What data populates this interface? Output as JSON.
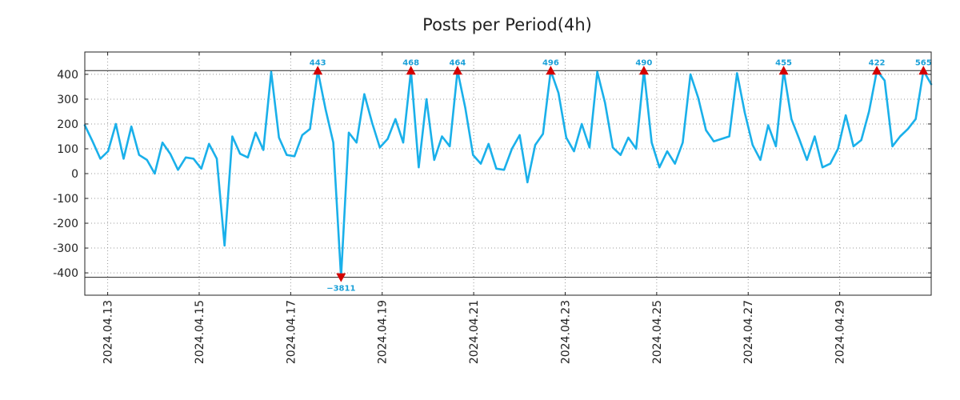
{
  "chart_data": {
    "type": "line",
    "title": "Posts per Period(4h)",
    "xlabel": "",
    "ylabel": "",
    "ylim": [
      -490,
      490
    ],
    "grid": true,
    "yticks": [
      400,
      300,
      200,
      100,
      0,
      -100,
      -200,
      -300,
      -400
    ],
    "ytick_labels": [
      "400",
      "300",
      "200",
      "100",
      "0",
      "-100",
      "-200",
      "-300",
      "-400"
    ],
    "x_start_date": "2024.04.12 12:00",
    "x_end_date": "2024.05.01 00:00",
    "xticks": [
      "2024.04.13",
      "2024.04.15",
      "2024.04.17",
      "2024.04.19",
      "2024.04.21",
      "2024.04.23",
      "2024.04.25",
      "2024.04.27",
      "2024.04.29"
    ],
    "clip_lines": [
      415,
      -418
    ],
    "series": [
      {
        "name": "Posts",
        "color": "#1ab0ea",
        "values": [
          195,
          130,
          60,
          90,
          200,
          60,
          190,
          75,
          55,
          0,
          125,
          80,
          15,
          65,
          60,
          20,
          120,
          60,
          -290,
          150,
          80,
          65,
          165,
          95,
          410,
          145,
          75,
          70,
          155,
          180,
          415,
          260,
          125,
          -418,
          165,
          125,
          320,
          205,
          105,
          140,
          220,
          125,
          415,
          25,
          300,
          55,
          150,
          110,
          415,
          265,
          75,
          40,
          120,
          20,
          15,
          100,
          155,
          -35,
          115,
          160,
          415,
          325,
          145,
          90,
          200,
          105,
          410,
          285,
          105,
          75,
          145,
          100,
          415,
          125,
          25,
          90,
          40,
          125,
          400,
          305,
          175,
          130,
          140,
          150,
          405,
          245,
          115,
          55,
          195,
          110,
          415,
          220,
          140,
          55,
          150,
          25,
          40,
          100,
          235,
          110,
          135,
          250,
          415,
          375,
          110,
          150,
          180,
          220,
          415,
          360
        ]
      }
    ],
    "markers": [
      {
        "index": 30,
        "label": "443",
        "direction": "up"
      },
      {
        "index": 33,
        "label": "−3811",
        "direction": "down"
      },
      {
        "index": 42,
        "label": "468",
        "direction": "up"
      },
      {
        "index": 48,
        "label": "464",
        "direction": "up"
      },
      {
        "index": 60,
        "label": "496",
        "direction": "up"
      },
      {
        "index": 72,
        "label": "490",
        "direction": "up"
      },
      {
        "index": 90,
        "label": "455",
        "direction": "up"
      },
      {
        "index": 102,
        "label": "422",
        "direction": "up"
      },
      {
        "index": 108,
        "label": "565",
        "direction": "up"
      }
    ],
    "marker_color": "#d40000"
  }
}
